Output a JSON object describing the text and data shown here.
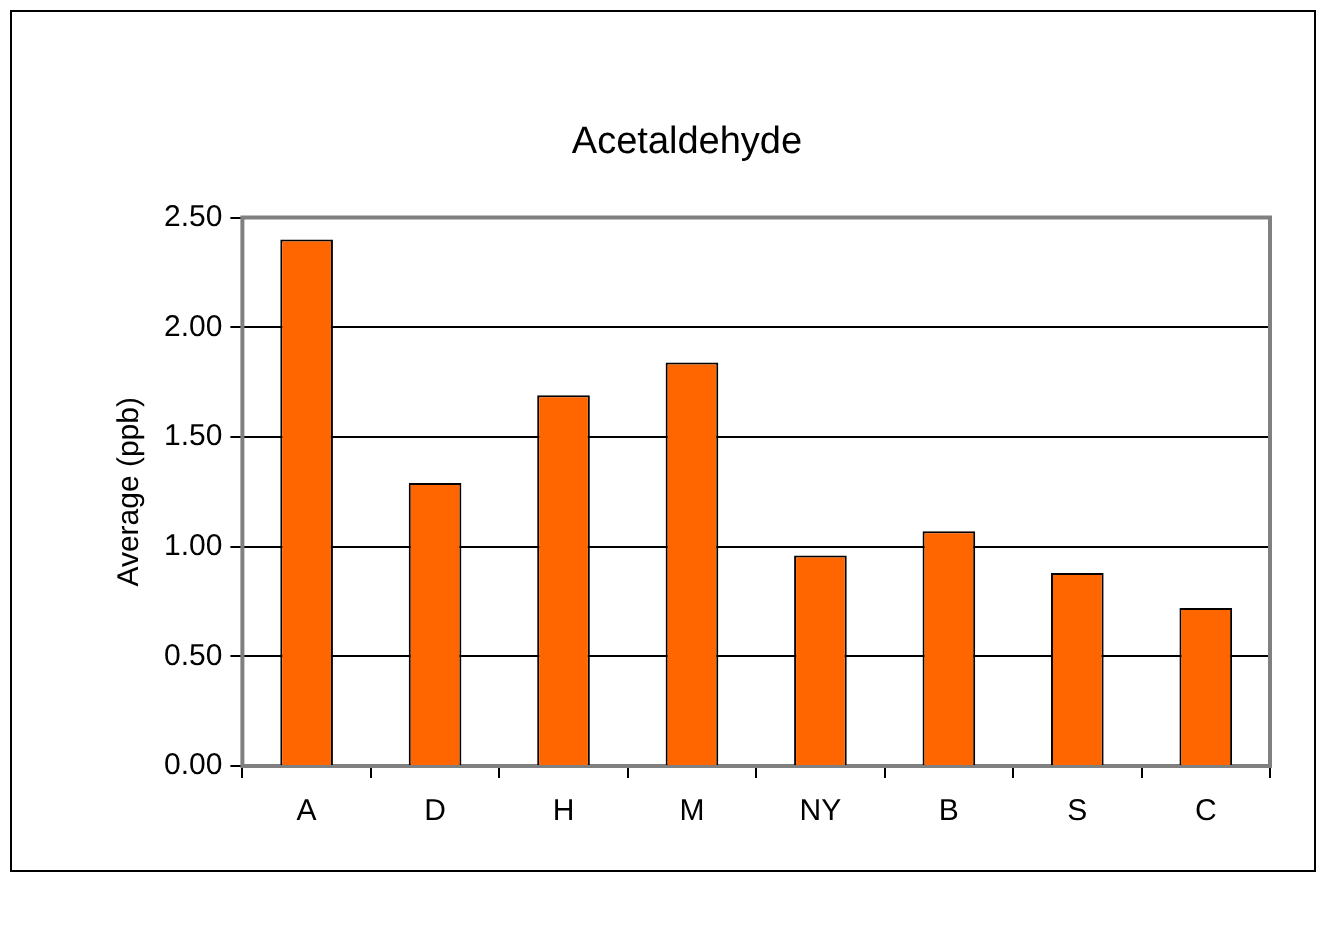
{
  "chart_data": {
    "type": "bar",
    "title": "Acetaldehyde",
    "ylabel": "Average (ppb)",
    "categories": [
      "A",
      "D",
      "H",
      "M",
      "NY",
      "B",
      "S",
      "C"
    ],
    "values": [
      2.4,
      1.29,
      1.69,
      1.84,
      0.96,
      1.07,
      0.88,
      0.72
    ],
    "color": "#ff6600",
    "ylim": [
      0,
      2.5
    ],
    "yticks": [
      {
        "value": 0,
        "label": "0.00"
      },
      {
        "value": 0.5,
        "label": "0.50"
      },
      {
        "value": 1,
        "label": "1.00"
      },
      {
        "value": 1.5,
        "label": "1.50"
      },
      {
        "value": 2,
        "label": "2.00"
      },
      {
        "value": 2.5,
        "label": "2.50"
      }
    ],
    "grid": "y",
    "legend": false
  }
}
